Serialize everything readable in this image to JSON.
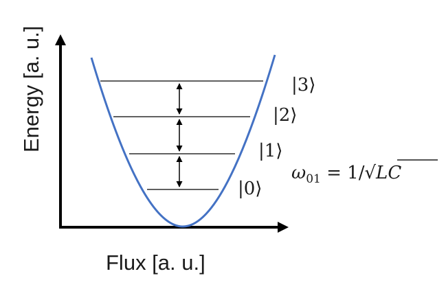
{
  "axes": {
    "x_label": "Flux [a. u.]",
    "y_label": "Energy [a. u.]"
  },
  "states": [
    {
      "label": "|0⟩"
    },
    {
      "label": "|1⟩"
    },
    {
      "label": "|2⟩"
    },
    {
      "label": "|3⟩"
    }
  ],
  "formula": {
    "omega": "ω",
    "subscript": "01",
    "equals": " = 1/",
    "sqrt": "√",
    "arg": "LC"
  },
  "colors": {
    "potential_curve": "#4472c4",
    "lines": "#000000"
  }
}
